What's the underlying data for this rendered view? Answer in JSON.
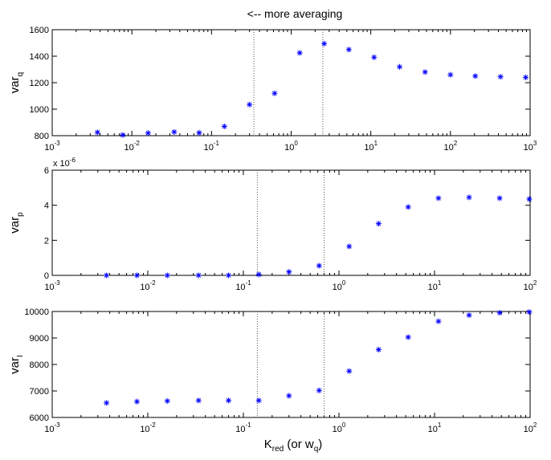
{
  "figure": {
    "title": "<-- more averaging",
    "xlabel": {
      "main": "K",
      "sub": "red",
      "suffix_open": " (or w",
      "suffix_sub": "q",
      "suffix_close": ")"
    }
  },
  "colors": {
    "marker": "#0000ff",
    "axis": "#000000",
    "vline": "#555555"
  },
  "chart_data": [
    {
      "type": "scatter",
      "id": "top",
      "ylabel": {
        "main": "var",
        "sub": "q"
      },
      "xscale": "log",
      "xlim": [
        0.001,
        1000
      ],
      "ylim": [
        800,
        1600
      ],
      "yticks": [
        800,
        1000,
        1200,
        1400,
        1600
      ],
      "xtick_exponents": [
        -3,
        -2,
        -1,
        0,
        1,
        2,
        3
      ],
      "scale_note": "",
      "vlines": [
        0.34,
        2.5
      ],
      "marker": "*",
      "points": [
        [
          0.0037,
          825
        ],
        [
          0.0077,
          805
        ],
        [
          0.016,
          820
        ],
        [
          0.034,
          828
        ],
        [
          0.07,
          822
        ],
        [
          0.145,
          870
        ],
        [
          0.3,
          1035
        ],
        [
          0.62,
          1120
        ],
        [
          1.28,
          1425
        ],
        [
          2.6,
          1495
        ],
        [
          5.3,
          1450
        ],
        [
          11,
          1392
        ],
        [
          23,
          1320
        ],
        [
          48,
          1280
        ],
        [
          100,
          1260
        ],
        [
          205,
          1250
        ],
        [
          425,
          1245
        ],
        [
          880,
          1240
        ]
      ]
    },
    {
      "type": "scatter",
      "id": "middle",
      "ylabel": {
        "main": "var",
        "sub": "p"
      },
      "xscale": "log",
      "xlim": [
        0.001,
        100
      ],
      "ylim": [
        0,
        6
      ],
      "yticks": [
        0,
        2,
        4,
        6
      ],
      "xtick_exponents": [
        -3,
        -2,
        -1,
        0,
        1,
        2
      ],
      "scale_note": "x 10",
      "scale_note_exp": "-6",
      "vlines": [
        0.14,
        0.7
      ],
      "marker": "*",
      "points": [
        [
          0.0037,
          0.0
        ],
        [
          0.0077,
          0.0
        ],
        [
          0.016,
          0.0
        ],
        [
          0.034,
          0.0
        ],
        [
          0.07,
          0.0
        ],
        [
          0.145,
          0.05
        ],
        [
          0.3,
          0.2
        ],
        [
          0.62,
          0.55
        ],
        [
          1.28,
          1.65
        ],
        [
          2.6,
          2.95
        ],
        [
          5.3,
          3.9
        ],
        [
          11,
          4.4
        ],
        [
          23,
          4.45
        ],
        [
          48,
          4.4
        ],
        [
          98,
          4.35
        ]
      ]
    },
    {
      "type": "scatter",
      "id": "bottom",
      "ylabel": {
        "main": "var",
        "sub": "I"
      },
      "xscale": "log",
      "xlim": [
        0.001,
        100
      ],
      "ylim": [
        6000,
        10000
      ],
      "yticks": [
        6000,
        7000,
        8000,
        9000,
        10000
      ],
      "xtick_exponents": [
        -3,
        -2,
        -1,
        0,
        1,
        2
      ],
      "scale_note": "",
      "vlines": [
        0.14,
        0.7
      ],
      "marker": "*",
      "points": [
        [
          0.0037,
          6550
        ],
        [
          0.0077,
          6600
        ],
        [
          0.016,
          6620
        ],
        [
          0.034,
          6640
        ],
        [
          0.07,
          6640
        ],
        [
          0.145,
          6640
        ],
        [
          0.3,
          6820
        ],
        [
          0.62,
          7020
        ],
        [
          1.28,
          7750
        ],
        [
          2.6,
          8560
        ],
        [
          5.3,
          9030
        ],
        [
          11,
          9630
        ],
        [
          23,
          9860
        ],
        [
          48,
          9950
        ],
        [
          98,
          9980
        ]
      ]
    }
  ]
}
